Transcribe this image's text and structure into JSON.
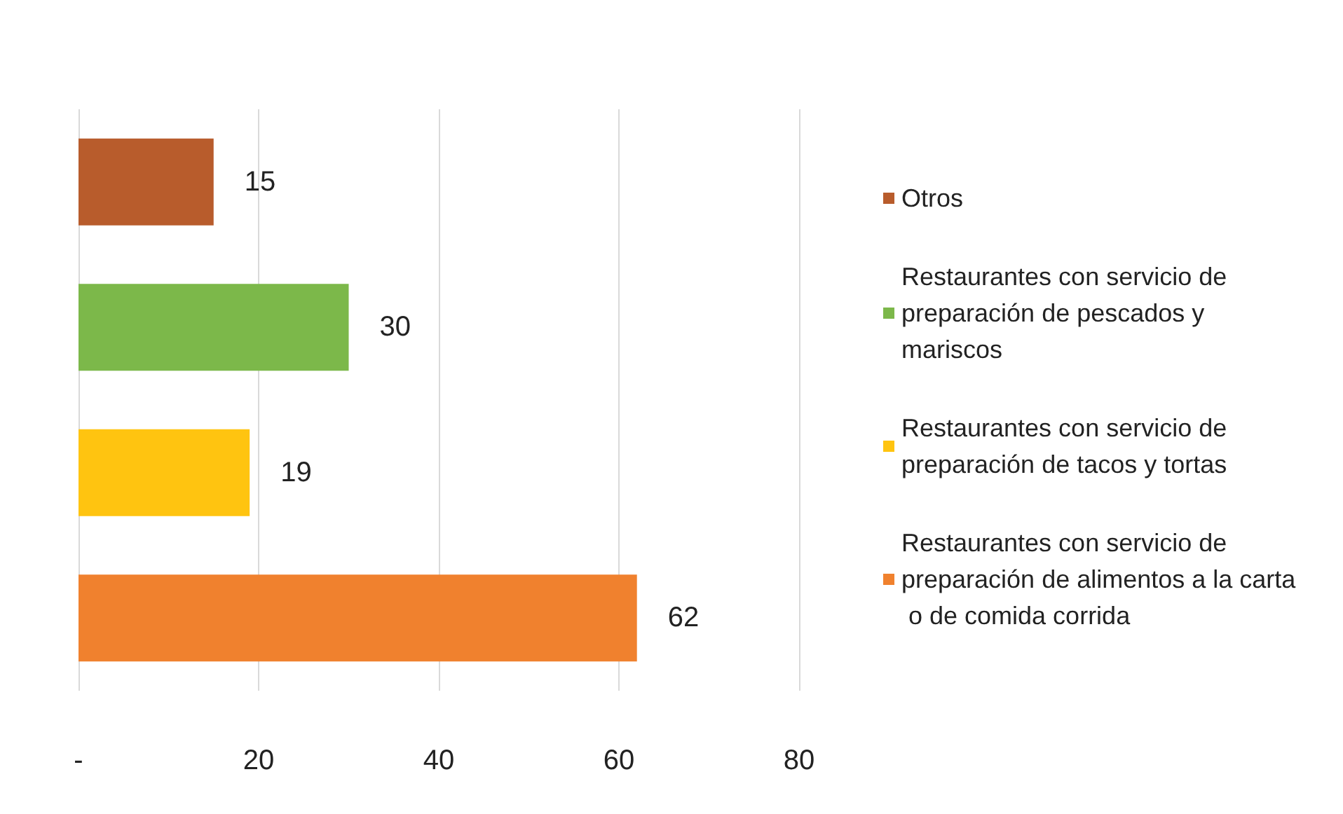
{
  "chart_data": {
    "type": "bar",
    "orientation": "horizontal",
    "categories": [
      null,
      null,
      null,
      null
    ],
    "series": [
      {
        "name": "Otros",
        "color": "#b85c2c",
        "values": [
          15,
          null,
          null,
          null
        ]
      },
      {
        "name": "Restaurantes con servicio de preparación de pescados y mariscos",
        "color": "#7cb84a",
        "values": [
          null,
          30,
          null,
          null
        ]
      },
      {
        "name": "Restaurantes con servicio de preparación de tacos y tortas",
        "color": "#ffc410",
        "values": [
          null,
          null,
          19,
          null
        ]
      },
      {
        "name": "Restaurantes con servicio de preparación de alimentos a la carta o de comida corrida",
        "color": "#f0812e",
        "values": [
          null,
          null,
          null,
          62
        ]
      }
    ],
    "xlim": [
      0,
      80
    ],
    "xticks": [
      {
        "value": 0,
        "label": "-"
      },
      20,
      40,
      60,
      80
    ],
    "grid": "x",
    "legend": "right",
    "data_labels": true
  }
}
